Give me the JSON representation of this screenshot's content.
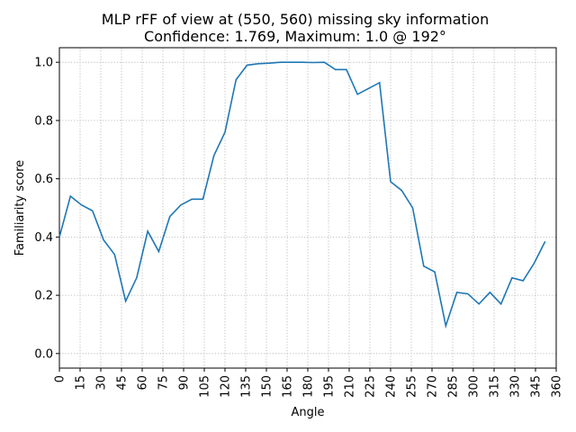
{
  "chart_data": {
    "type": "line",
    "title": "MLP rFF of view at (550, 560) missing sky information",
    "subtitle": "Confidence: 1.769, Maximum: 1.0 @ 192°",
    "xlabel": "Angle",
    "ylabel": "Familiarity score",
    "xlim": [
      0,
      360
    ],
    "ylim": [
      -0.05,
      1.05
    ],
    "grid": true,
    "xticks": [
      0,
      15,
      30,
      45,
      60,
      75,
      90,
      105,
      120,
      135,
      150,
      165,
      180,
      195,
      210,
      225,
      240,
      255,
      270,
      285,
      300,
      315,
      330,
      345,
      360
    ],
    "yticks": [
      0.0,
      0.2,
      0.4,
      0.6,
      0.8,
      1.0
    ],
    "ytick_labels": [
      "0.0",
      "0.2",
      "0.4",
      "0.6",
      "0.8",
      "1.0"
    ],
    "line_color": "#1f77b4",
    "series": [
      {
        "x": [
          0,
          8,
          16,
          24,
          32,
          40,
          48,
          56,
          64,
          72,
          80,
          88,
          96,
          104,
          112,
          120,
          128,
          136,
          144,
          152,
          160,
          168,
          176,
          184,
          192,
          200,
          208,
          216,
          224,
          232,
          240,
          248,
          256,
          264,
          272,
          280,
          288,
          296,
          304,
          312,
          320,
          328,
          336,
          344,
          352
        ],
        "values": [
          0.4,
          0.54,
          0.51,
          0.49,
          0.39,
          0.34,
          0.18,
          0.26,
          0.42,
          0.35,
          0.47,
          0.51,
          0.53,
          0.53,
          0.68,
          0.76,
          0.94,
          0.99,
          0.995,
          0.997,
          1.0,
          1.0,
          1.0,
          0.999,
          1.0,
          0.975,
          0.975,
          0.89,
          0.91,
          0.93,
          0.59,
          0.56,
          0.5,
          0.3,
          0.28,
          0.095,
          0.21,
          0.205,
          0.17,
          0.21,
          0.17,
          0.26,
          0.25,
          0.31,
          0.385
        ]
      }
    ]
  }
}
